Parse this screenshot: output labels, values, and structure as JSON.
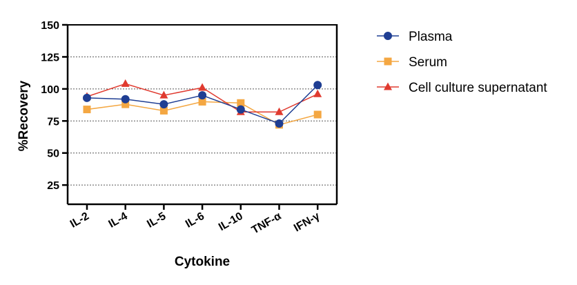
{
  "chart_data": {
    "type": "line",
    "title": "",
    "xlabel": "Cytokine",
    "ylabel": "%Recovery",
    "ylim": [
      10,
      150
    ],
    "yticks": [
      25,
      50,
      75,
      100,
      125,
      150
    ],
    "grid": "horizontal dotted",
    "legend_position": "right",
    "categories": [
      "IL-2",
      "IL-4",
      "IL-5",
      "IL-6",
      "IL-10",
      "TNF-α",
      "IFN-γ"
    ],
    "series": [
      {
        "name": "Plasma",
        "color": "#1f3e93",
        "marker": "circle",
        "values": [
          93,
          92,
          88,
          95,
          84,
          73,
          103
        ]
      },
      {
        "name": "Serum",
        "color": "#f4a742",
        "marker": "square",
        "values": [
          84,
          88,
          83,
          90,
          89,
          72,
          80
        ]
      },
      {
        "name": "Cell culture supernatant",
        "color": "#e03a2f",
        "marker": "triangle",
        "values": [
          94,
          104,
          95,
          101,
          82,
          82,
          96
        ]
      }
    ]
  }
}
